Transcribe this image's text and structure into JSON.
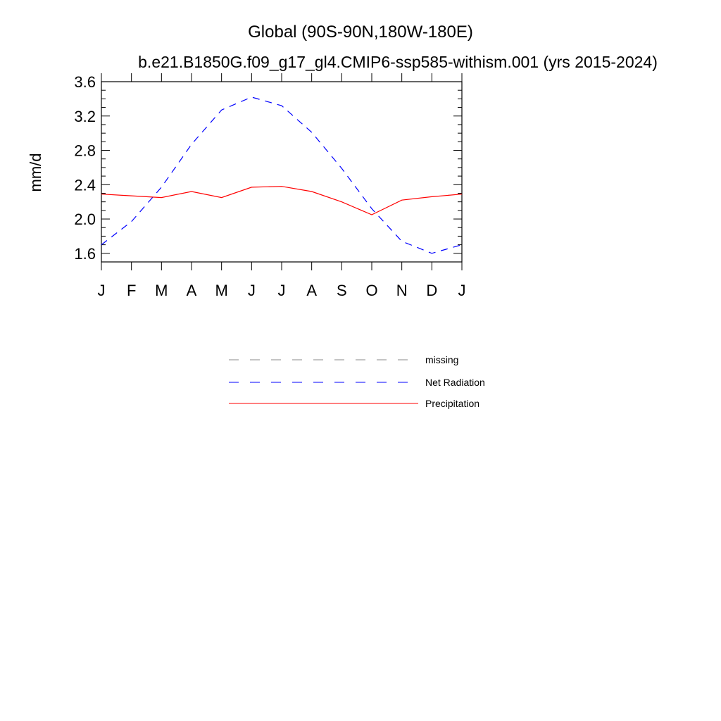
{
  "chart_data": {
    "type": "line",
    "title": "Global (90S-90N,180W-180E)",
    "subtitle": "b.e21.B1850G.f09_g17_gl4.CMIP6-ssp585-withism.001 (yrs 2015-2024)",
    "xlabel": "",
    "ylabel": "mm/d",
    "categories": [
      "J",
      "F",
      "M",
      "A",
      "M",
      "J",
      "J",
      "A",
      "S",
      "O",
      "N",
      "D",
      "J"
    ],
    "ylim": [
      1.5,
      3.6
    ],
    "yticks": [
      "1.6",
      "2.0",
      "2.4",
      "2.8",
      "3.2",
      "3.6"
    ],
    "grid": false,
    "legend_position": "below",
    "series": [
      {
        "name": "Net Radiation",
        "color": "#0000ff",
        "style": "dashed",
        "values": [
          1.7,
          1.97,
          2.37,
          2.87,
          3.27,
          3.42,
          3.32,
          3.01,
          2.59,
          2.12,
          1.74,
          1.6,
          1.7
        ]
      },
      {
        "name": "Precipitation",
        "color": "#ff0000",
        "style": "solid",
        "values": [
          2.29,
          2.27,
          2.25,
          2.32,
          2.25,
          2.37,
          2.38,
          2.32,
          2.2,
          2.05,
          2.22,
          2.26,
          2.29
        ]
      }
    ],
    "legend": [
      {
        "label": "missing",
        "color": "#888888",
        "style": "dashed"
      },
      {
        "label": "Net Radiation",
        "color": "#0000ff",
        "style": "dashed"
      },
      {
        "label": "Precipitation",
        "color": "#ff0000",
        "style": "solid"
      }
    ]
  }
}
